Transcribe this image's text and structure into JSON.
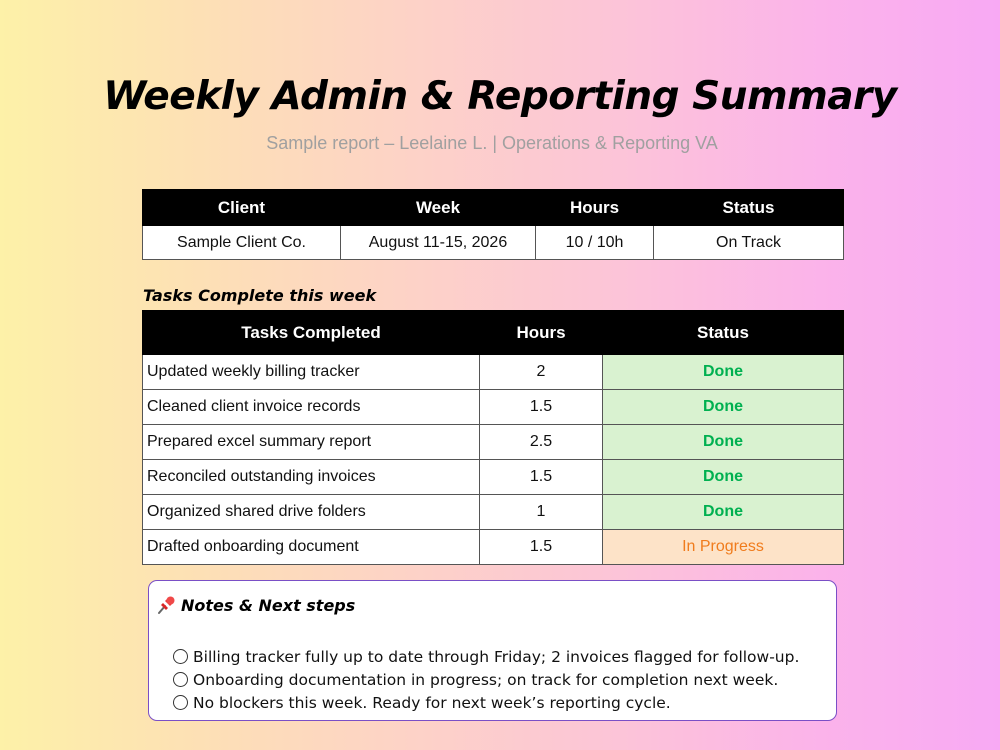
{
  "title": "Weekly Admin & Reporting Summary",
  "subtitle": "Sample report – Leelaine L. | Operations & Reporting VA",
  "summary": {
    "headers": [
      "Client",
      "Week",
      "Hours",
      "Status"
    ],
    "row": [
      "Sample Client Co.",
      "August 11-15, 2026",
      "10 / 10h",
      "On Track"
    ]
  },
  "tasks_section_label": "Tasks Complete this week",
  "tasks": {
    "headers": [
      "Tasks Completed",
      "Hours",
      "Status"
    ],
    "rows": [
      {
        "task": "Updated weekly billing tracker",
        "hours": "2",
        "status": "Done"
      },
      {
        "task": "Cleaned client invoice records",
        "hours": "1.5",
        "status": "Done"
      },
      {
        "task": "Prepared excel summary report",
        "hours": "2.5",
        "status": "Done"
      },
      {
        "task": "Reconciled outstanding invoices",
        "hours": "1.5",
        "status": "Done"
      },
      {
        "task": "Organized shared drive folders",
        "hours": "1",
        "status": "Done"
      },
      {
        "task": "Drafted onboarding document",
        "hours": "1.5",
        "status": "In Progress"
      }
    ]
  },
  "notes": {
    "icon": "pushpin-icon",
    "title": "Notes & Next steps",
    "items": [
      "Billing tracker fully up to date through Friday; 2 invoices flagged for follow-up.",
      "Onboarding documentation in progress; on track for completion next week.",
      "No blockers this week. Ready for next week’s reporting cycle."
    ]
  },
  "colors": {
    "done_text": "#00b050",
    "done_bg": "#d9f2d0",
    "progress_text": "#f07c1d",
    "progress_bg": "#fde3c8",
    "header_bg": "#000000",
    "notes_border": "#7a4fc6"
  }
}
